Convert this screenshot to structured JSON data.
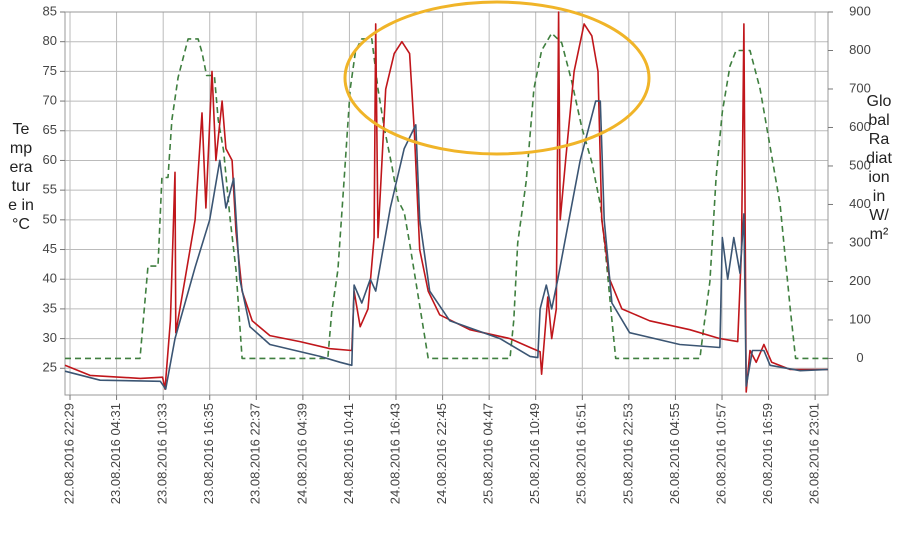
{
  "chart_data": {
    "type": "line",
    "y_label": "Temperature in °C",
    "y2_label": "Global Radiation in W/m²",
    "xlim": [
      -0.65,
      98.2
    ],
    "ylim": [
      20.5,
      85
    ],
    "y2lim": [
      -95,
      900
    ],
    "grid": true,
    "yticks": [
      25,
      30,
      35,
      40,
      45,
      50,
      55,
      60,
      65,
      70,
      75,
      80,
      85
    ],
    "y2ticks": [
      0,
      100,
      200,
      300,
      400,
      500,
      600,
      700,
      800,
      900
    ],
    "xticks": [
      {
        "value": 0,
        "label": "22.08.2016 22:29"
      },
      {
        "value": 6.03,
        "label": "23.08.2016 04:31"
      },
      {
        "value": 12.07,
        "label": "23.08.2016 10:33"
      },
      {
        "value": 18.1,
        "label": "23.08.2016 16:35"
      },
      {
        "value": 24.13,
        "label": "23.08.2016 22:37"
      },
      {
        "value": 30.17,
        "label": "24.08.2016 04:39"
      },
      {
        "value": 36.2,
        "label": "24.08.2016 10:41"
      },
      {
        "value": 42.23,
        "label": "24.08.2016 16:43"
      },
      {
        "value": 48.27,
        "label": "24.08.2016 22:45"
      },
      {
        "value": 54.3,
        "label": "25.08.2016 04:47"
      },
      {
        "value": 60.33,
        "label": "25.08.2016 10:49"
      },
      {
        "value": 66.37,
        "label": "25.08.2016 16:51"
      },
      {
        "value": 72.4,
        "label": "25.08.2016 22:53"
      },
      {
        "value": 78.43,
        "label": "26.08.2016 04:55"
      },
      {
        "value": 84.47,
        "label": "26.08.2016 10:57"
      },
      {
        "value": 90.5,
        "label": "26.08.2016 16:59"
      },
      {
        "value": 96.53,
        "label": "26.08.2016 23:01"
      }
    ],
    "series": [
      {
        "color": "#3f7f3f",
        "axis": "y2",
        "style": "dashed",
        "x": [
          -0.65,
          9.07,
          10.1,
          11.4,
          11.9,
          12.7,
          13.2,
          14.0,
          15.3,
          16.6,
          17.1,
          17.7,
          18.7,
          19.2,
          19.9,
          20.7,
          21.5,
          22.3,
          33.4,
          33.9,
          34.7,
          35.5,
          36.3,
          37.0,
          37.8,
          39.1,
          39.9,
          40.7,
          41.7,
          42.5,
          43.3,
          44.0,
          44.8,
          45.6,
          46.4,
          57.0,
          57.5,
          58.0,
          59.1,
          60.1,
          61.1,
          62.4,
          63.7,
          65.0,
          66.3,
          67.6,
          68.7,
          69.4,
          70.2,
          70.7,
          81.6,
          82.1,
          82.9,
          83.7,
          84.5,
          85.5,
          86.3,
          88.1,
          89.4,
          90.7,
          92.0,
          93.3,
          94.0,
          98.2
        ],
        "values": [
          0,
          0,
          240,
          240,
          470,
          470,
          620,
          730,
          830,
          830,
          795,
          735,
          735,
          620,
          540,
          370,
          230,
          0,
          0,
          120,
          230,
          460,
          700,
          800,
          830,
          830,
          700,
          600,
          500,
          410,
          380,
          300,
          200,
          100,
          0,
          0,
          100,
          300,
          460,
          700,
          800,
          845,
          820,
          720,
          600,
          510,
          400,
          270,
          100,
          0,
          0,
          80,
          200,
          470,
          640,
          760,
          800,
          800,
          700,
          550,
          400,
          130,
          0,
          0
        ]
      },
      {
        "color": "#c0161b",
        "x": [
          -0.65,
          2.6,
          9.1,
          12.0,
          12.3,
          13.0,
          13.6,
          13.7,
          14.9,
          16.2,
          17.1,
          17.6,
          18.4,
          18.9,
          19.7,
          20.2,
          21.0,
          21.5,
          22.3,
          23.6,
          25.9,
          29.8,
          33.7,
          36.5,
          36.8,
          37.6,
          38.6,
          39.4,
          39.6,
          39.9,
          40.9,
          42.0,
          43.0,
          44.0,
          44.6,
          45.3,
          46.4,
          47.9,
          51.8,
          57.0,
          59.6,
          60.9,
          61.1,
          61.9,
          62.4,
          63.0,
          63.3,
          63.5,
          64.2,
          65.3,
          66.6,
          67.6,
          68.4,
          68.9,
          69.9,
          71.5,
          75.1,
          80.3,
          84.2,
          86.5,
          87.0,
          87.3,
          87.6,
          88.1,
          88.9,
          89.9,
          90.9,
          93.3,
          98.2
        ],
        "values": [
          25.5,
          23.8,
          23.3,
          23.5,
          21.5,
          33,
          58,
          31,
          40,
          50,
          68,
          52,
          75,
          60,
          70,
          62,
          60,
          48,
          38,
          33,
          30.5,
          29.5,
          28.3,
          28,
          38,
          32,
          35,
          47,
          83,
          47,
          72,
          78,
          80,
          78,
          65,
          45,
          38,
          34,
          31.5,
          30,
          28.5,
          27.8,
          24,
          37,
          30,
          35,
          85,
          50,
          60,
          75,
          83,
          81,
          75,
          50,
          40,
          35,
          33,
          31.5,
          30,
          29.5,
          45,
          83,
          21,
          28,
          26,
          29,
          26,
          24.8,
          24.8
        ]
      },
      {
        "color": "#3b5573",
        "x": [
          -0.65,
          3.9,
          11.7,
          12.4,
          13.6,
          16.2,
          18.1,
          19.4,
          20.2,
          21.2,
          22.0,
          23.3,
          25.9,
          32.4,
          35.0,
          36.5,
          36.8,
          37.8,
          38.9,
          39.6,
          41.5,
          43.3,
          44.8,
          45.3,
          46.6,
          49.2,
          55.7,
          59.6,
          60.6,
          60.9,
          61.7,
          62.4,
          63.2,
          64.2,
          66.1,
          68.1,
          68.7,
          69.2,
          70.2,
          72.5,
          79.0,
          84.2,
          84.5,
          85.2,
          86.0,
          86.8,
          87.3,
          87.6,
          88.4,
          89.9,
          90.7,
          94.6,
          98.2
        ],
        "values": [
          24.5,
          23,
          22.8,
          21.5,
          30,
          42,
          50,
          60,
          52,
          57,
          40,
          32,
          29,
          27,
          26,
          25.5,
          39,
          36,
          40,
          38,
          52,
          62,
          66,
          50,
          38,
          33,
          30,
          27,
          26.8,
          35,
          39,
          35,
          40,
          47,
          60,
          70,
          70,
          50,
          36,
          31,
          29,
          28.5,
          47,
          40,
          47,
          41,
          51,
          22,
          28,
          28,
          25.5,
          24.6,
          24.8
        ]
      }
    ]
  }
}
